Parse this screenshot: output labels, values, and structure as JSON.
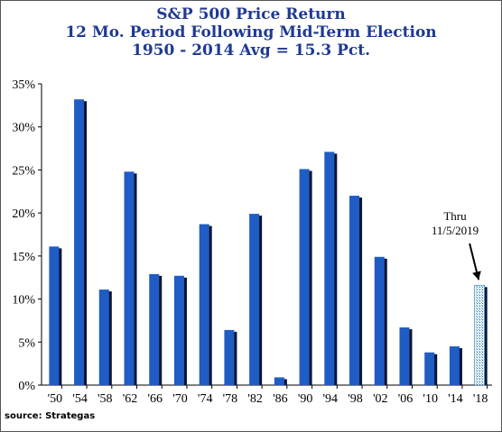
{
  "title": {
    "line1": "S&P 500 Price Return",
    "line2": "12 Mo. Period Following Mid-Term Election",
    "line3": "1950 - 2014 Avg = 15.3 Pct."
  },
  "annotation": {
    "line1": "Thru",
    "line2": "11/5/2019"
  },
  "source": "source: Strategas",
  "colors": {
    "bar": "#1f5cc4",
    "bar_shadow": "#0a1533",
    "title": "#1f3a93",
    "highlight_bar": "#a6d1e6"
  },
  "chart_data": {
    "type": "bar",
    "title": "S&P 500 Price Return 12 Mo. Period Following Mid-Term Election",
    "xlabel": "",
    "ylabel": "",
    "categories": [
      "'50",
      "'54",
      "'58",
      "'62",
      "'66",
      "'70",
      "'74",
      "'78",
      "'82",
      "'86",
      "'90",
      "'94",
      "'98",
      "'02",
      "'06",
      "'10",
      "'14",
      "'18"
    ],
    "values": [
      16.1,
      33.2,
      11.1,
      24.8,
      12.9,
      12.7,
      18.7,
      6.4,
      19.9,
      0.9,
      25.1,
      27.1,
      22.0,
      14.9,
      6.7,
      3.8,
      4.5,
      11.6
    ],
    "highlight_index": 17,
    "ylim": [
      0,
      35
    ],
    "yticks": [
      0,
      5,
      10,
      15,
      20,
      25,
      30,
      35
    ],
    "ytick_format": "percent",
    "grid": false,
    "legend": "none"
  }
}
